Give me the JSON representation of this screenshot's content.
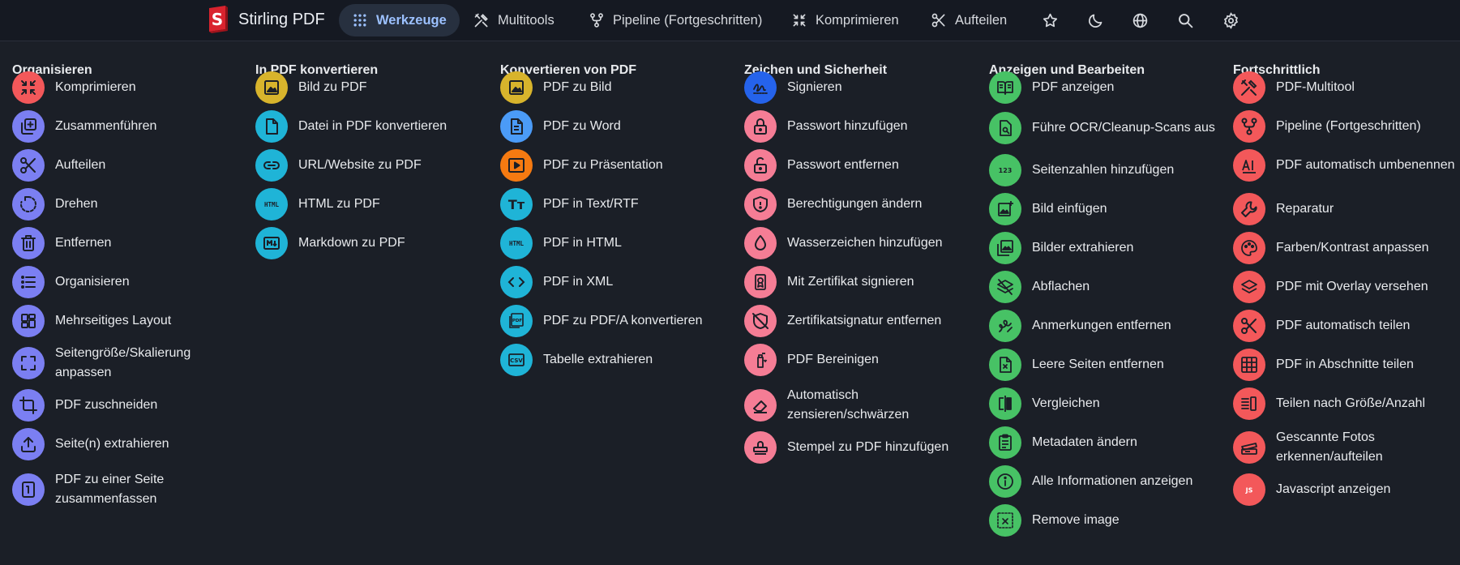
{
  "app": {
    "name": "Stirling PDF"
  },
  "nav": {
    "items": [
      {
        "label": "Werkzeuge",
        "icon": "grid-icon"
      },
      {
        "label": "Multitools",
        "icon": "tools-icon"
      },
      {
        "label": "Pipeline (Fortgeschritten)",
        "icon": "pipeline-icon"
      },
      {
        "label": "Komprimieren",
        "icon": "compress-icon"
      },
      {
        "label": "Aufteilen",
        "icon": "scissors-icon"
      }
    ],
    "icon_buttons": [
      "star-icon",
      "moon-icon",
      "globe-icon",
      "search-icon",
      "gear-icon"
    ]
  },
  "colors": {
    "purple": "#7b7ff2",
    "yellow": "#d8b42c",
    "cyan": "#1fb4d7",
    "pink": "#f57d95",
    "green": "#47c265",
    "red": "#f3585a",
    "blue": "#2563eb",
    "orange": "#f57a11",
    "lightblue": "#4b9bf7"
  },
  "columns": [
    {
      "title": "Organisieren",
      "tools": [
        {
          "label": "Komprimieren",
          "icon": "compress-icon",
          "color": "#f3585a"
        },
        {
          "label": "Zusammenführen",
          "icon": "merge-icon",
          "color": "#7b7ff2"
        },
        {
          "label": "Aufteilen",
          "icon": "scissors-icon",
          "color": "#7b7ff2"
        },
        {
          "label": "Drehen",
          "icon": "rotate-icon",
          "color": "#7b7ff2"
        },
        {
          "label": "Entfernen",
          "icon": "trash-icon",
          "color": "#7b7ff2"
        },
        {
          "label": "Organisieren",
          "icon": "list-icon",
          "color": "#7b7ff2"
        },
        {
          "label": "Mehrseitiges Layout",
          "icon": "layout-icon",
          "color": "#7b7ff2"
        },
        {
          "label": "Seitengröße/Skalierung anpassen",
          "icon": "fullscreen-icon",
          "color": "#7b7ff2"
        },
        {
          "label": "PDF zuschneiden",
          "icon": "crop-icon",
          "color": "#7b7ff2"
        },
        {
          "label": "Seite(n) extrahieren",
          "icon": "upload-icon",
          "color": "#7b7ff2"
        },
        {
          "label": "PDF zu einer Seite zusammenfassen",
          "icon": "single-page-icon",
          "color": "#7b7ff2"
        }
      ]
    },
    {
      "title": "In PDF konvertieren",
      "tools": [
        {
          "label": "Bild zu PDF",
          "icon": "image-icon",
          "color": "#d8b42c"
        },
        {
          "label": "Datei in PDF konvertieren",
          "icon": "file-icon",
          "color": "#1fb4d7"
        },
        {
          "label": "URL/Website zu PDF",
          "icon": "link-icon",
          "color": "#1fb4d7"
        },
        {
          "label": "HTML zu PDF",
          "icon": "html-icon",
          "color": "#1fb4d7"
        },
        {
          "label": "Markdown zu PDF",
          "icon": "markdown-icon",
          "color": "#1fb4d7"
        }
      ]
    },
    {
      "title": "Konvertieren von PDF",
      "tools": [
        {
          "label": "PDF zu Bild",
          "icon": "image-icon",
          "color": "#d8b42c"
        },
        {
          "label": "PDF zu Word",
          "icon": "document-icon",
          "color": "#4b9bf7"
        },
        {
          "label": "PDF zu Präsentation",
          "icon": "slideshow-icon",
          "color": "#f57a11"
        },
        {
          "label": "PDF in Text/RTF",
          "icon": "text-icon",
          "color": "#1fb4d7"
        },
        {
          "label": "PDF in HTML",
          "icon": "html-icon",
          "color": "#1fb4d7"
        },
        {
          "label": "PDF in XML",
          "icon": "code-icon",
          "color": "#1fb4d7"
        },
        {
          "label": "PDF zu PDF/A konvertieren",
          "icon": "pdfa-icon",
          "color": "#1fb4d7"
        },
        {
          "label": "Tabelle extrahieren",
          "icon": "csv-icon",
          "color": "#1fb4d7"
        }
      ]
    },
    {
      "title": "Zeichen und Sicherheit",
      "tools": [
        {
          "label": "Signieren",
          "icon": "signature-icon",
          "color": "#2563eb"
        },
        {
          "label": "Passwort hinzufügen",
          "icon": "lock-icon",
          "color": "#f57d95"
        },
        {
          "label": "Passwort entfernen",
          "icon": "unlock-icon",
          "color": "#f57d95"
        },
        {
          "label": "Berechtigungen ändern",
          "icon": "shield-icon",
          "color": "#f57d95"
        },
        {
          "label": "Wasserzeichen hinzufügen",
          "icon": "droplet-icon",
          "color": "#f57d95"
        },
        {
          "label": "Mit Zertifikat signieren",
          "icon": "certificate-icon",
          "color": "#f57d95"
        },
        {
          "label": "Zertifikatsignatur entfernen",
          "icon": "shield-off-icon",
          "color": "#f57d95"
        },
        {
          "label": "PDF Bereinigen",
          "icon": "sanitize-icon",
          "color": "#f57d95"
        },
        {
          "label": "Automatisch zensieren/schwärzen",
          "icon": "eraser-icon",
          "color": "#f57d95"
        },
        {
          "label": "Stempel zu PDF hinzufügen",
          "icon": "stamp-icon",
          "color": "#f57d95"
        }
      ]
    },
    {
      "title": "Anzeigen und Bearbeiten",
      "tools": [
        {
          "label": "PDF anzeigen",
          "icon": "book-icon",
          "color": "#47c265"
        },
        {
          "label": "Führe OCR/Cleanup-Scans aus",
          "icon": "ocr-icon",
          "color": "#47c265"
        },
        {
          "label": "Seitenzahlen hinzufügen",
          "icon": "numbers-icon",
          "color": "#47c265"
        },
        {
          "label": "Bild einfügen",
          "icon": "add-image-icon",
          "color": "#47c265"
        },
        {
          "label": "Bilder extrahieren",
          "icon": "images-icon",
          "color": "#47c265"
        },
        {
          "label": "Abflachen",
          "icon": "layers-off-icon",
          "color": "#47c265"
        },
        {
          "label": "Anmerkungen entfernen",
          "icon": "scribble-icon",
          "color": "#47c265"
        },
        {
          "label": "Leere Seiten entfernen",
          "icon": "file-x-icon",
          "color": "#47c265"
        },
        {
          "label": "Vergleichen",
          "icon": "compare-icon",
          "color": "#47c265"
        },
        {
          "label": "Metadaten ändern",
          "icon": "clipboard-icon",
          "color": "#47c265"
        },
        {
          "label": "Alle Informationen anzeigen",
          "icon": "info-icon",
          "color": "#47c265"
        },
        {
          "label": "Remove image",
          "icon": "remove-image-icon",
          "color": "#47c265"
        }
      ]
    },
    {
      "title": "Fortschrittlich",
      "tools": [
        {
          "label": "PDF-Multitool",
          "icon": "tools-icon",
          "color": "#f3585a"
        },
        {
          "label": "Pipeline (Fortgeschritten)",
          "icon": "pipeline-icon",
          "color": "#f3585a"
        },
        {
          "label": "PDF automatisch umbenennen",
          "icon": "ai-rename-icon",
          "color": "#f3585a"
        },
        {
          "label": "Reparatur",
          "icon": "wrench-icon",
          "color": "#f3585a"
        },
        {
          "label": "Farben/Kontrast anpassen",
          "icon": "palette-icon",
          "color": "#f3585a"
        },
        {
          "label": "PDF mit Overlay versehen",
          "icon": "layers-icon",
          "color": "#f3585a"
        },
        {
          "label": "PDF automatisch teilen",
          "icon": "scissors-icon",
          "color": "#f3585a"
        },
        {
          "label": "PDF in Abschnitte teilen",
          "icon": "table-grid-icon",
          "color": "#f3585a"
        },
        {
          "label": "Teilen nach Größe/Anzahl",
          "icon": "split-size-icon",
          "color": "#f3585a"
        },
        {
          "label": "Gescannte Fotos erkennen/aufteilen",
          "icon": "scanner-icon",
          "color": "#f3585a"
        },
        {
          "label": "Javascript anzeigen",
          "icon": "js-icon",
          "color": "#f3585a"
        }
      ]
    }
  ]
}
